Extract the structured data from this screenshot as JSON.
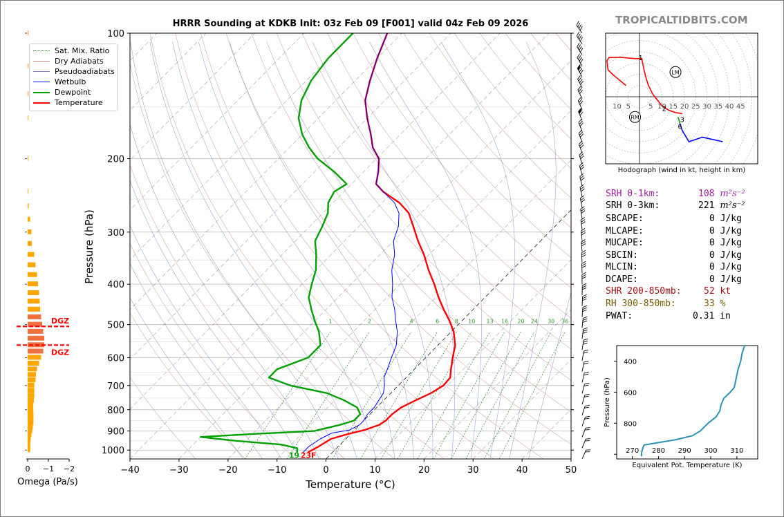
{
  "brand": "TROPICALTIDBITS.COM",
  "chart_data": [
    {
      "type": "line",
      "title": "HRRR Sounding at KDKB Init: 03z Feb 09 [F001] valid 04z Feb 09 2026",
      "xlabel": "Temperature (°C)",
      "ylabel": "Pressure (hPa)",
      "xlim": [
        -40,
        50
      ],
      "ylim": [
        1050,
        100
      ],
      "log_scale_y": true,
      "x_ticks": [
        "−40",
        "−30",
        "−20",
        "−10",
        "0",
        "10",
        "20",
        "30",
        "40",
        "50"
      ],
      "y_ticks": [
        "100",
        "200",
        "300",
        "400",
        "500",
        "600",
        "700",
        "800",
        "900",
        "1000"
      ],
      "skew": true,
      "legend": [
        "Sat. Mix. Ratio",
        "Dry Adiabats",
        "Pseudoadiabats",
        "Wetbulb",
        "Dewpoint",
        "Temperature"
      ],
      "legend_placement": "top-left",
      "mixing_ratio_labels": [
        "1",
        "2",
        "4",
        "6",
        "8",
        "10",
        "13",
        "16",
        "20",
        "24",
        "30",
        "36"
      ],
      "surface_label_dewpoint": "19",
      "surface_label_temperature": "23F",
      "series": [
        {
          "name": "Temperature",
          "color": "#ff0000",
          "points": [
            [
              -5,
              1013
            ],
            [
              -4,
              980
            ],
            [
              -3,
              940
            ],
            [
              -0.5,
              915
            ],
            [
              2,
              895
            ],
            [
              4,
              870
            ],
            [
              4.5,
              850
            ],
            [
              4.5,
              820
            ],
            [
              5,
              790
            ],
            [
              6.5,
              760
            ],
            [
              8.2,
              730
            ],
            [
              9.2,
              700
            ],
            [
              9,
              670
            ],
            [
              7.5,
              640
            ],
            [
              5.5,
              600
            ],
            [
              3.5,
              560
            ],
            [
              0.5,
              520
            ],
            [
              -2.5,
              490
            ],
            [
              -6,
              460
            ],
            [
              -9.5,
              430
            ],
            [
              -13,
              400
            ],
            [
              -17,
              370
            ],
            [
              -21,
              340
            ],
            [
              -25,
              315
            ],
            [
              -29,
              290
            ],
            [
              -32.5,
              270
            ],
            [
              -36.5,
              255
            ],
            [
              -42,
              240
            ],
            [
              -45,
              230
            ],
            [
              -47,
              215
            ],
            [
              -49.5,
              200
            ],
            [
              -53,
              188
            ],
            [
              -56,
              175
            ],
            [
              -60,
              160
            ],
            [
              -64,
              145
            ],
            [
              -67,
              130
            ],
            [
              -70,
              115
            ],
            [
              -73,
              100
            ]
          ]
        },
        {
          "name": "Wetbulb",
          "color": "#0000ff",
          "points": [
            [
              -6,
              1013
            ],
            [
              -6,
              980
            ],
            [
              -5.2,
              940
            ],
            [
              -4,
              910
            ],
            [
              -1,
              895
            ],
            [
              0,
              870
            ],
            [
              0,
              850
            ],
            [
              -0.5,
              820
            ],
            [
              -0.5,
              790
            ],
            [
              -1,
              760
            ],
            [
              -1.5,
              730
            ],
            [
              -2.8,
              700
            ],
            [
              -4.5,
              670
            ],
            [
              -5.5,
              640
            ],
            [
              -7,
              600
            ],
            [
              -8.5,
              560
            ],
            [
              -11,
              520
            ],
            [
              -13.5,
              490
            ],
            [
              -16,
              460
            ],
            [
              -19,
              430
            ],
            [
              -21.5,
              400
            ],
            [
              -24.5,
              370
            ],
            [
              -27,
              340
            ],
            [
              -30,
              315
            ],
            [
              -32,
              290
            ],
            [
              -34.5,
              270
            ],
            [
              -37.5,
              255
            ],
            [
              -42,
              240
            ],
            [
              -45,
              230
            ],
            [
              -47,
              215
            ],
            [
              -49.5,
              200
            ],
            [
              -53,
              188
            ],
            [
              -56,
              175
            ],
            [
              -60,
              160
            ],
            [
              -64,
              145
            ],
            [
              -67,
              130
            ],
            [
              -70,
              115
            ],
            [
              -73,
              100
            ]
          ]
        },
        {
          "name": "Dewpoint",
          "color": "#00a000",
          "points": [
            [
              -7.2,
              1013
            ],
            [
              -8,
              990
            ],
            [
              -12,
              970
            ],
            [
              -22,
              950
            ],
            [
              -30,
              930
            ],
            [
              -20,
              915
            ],
            [
              -8,
              900
            ],
            [
              -4,
              870
            ],
            [
              -2,
              850
            ],
            [
              -2,
              820
            ],
            [
              -4,
              790
            ],
            [
              -8,
              760
            ],
            [
              -13,
              730
            ],
            [
              -22,
              700
            ],
            [
              -28,
              670
            ],
            [
              -28,
              640
            ],
            [
              -24,
              600
            ],
            [
              -24,
              560
            ],
            [
              -27,
              520
            ],
            [
              -30,
              490
            ],
            [
              -33,
              460
            ],
            [
              -36,
              430
            ],
            [
              -38,
              400
            ],
            [
              -40,
              370
            ],
            [
              -43,
              340
            ],
            [
              -46,
              315
            ],
            [
              -47.5,
              290
            ],
            [
              -49,
              270
            ],
            [
              -51,
              255
            ],
            [
              -52,
              240
            ],
            [
              -51,
              230
            ],
            [
              -56,
              215
            ],
            [
              -62,
              200
            ],
            [
              -66,
              188
            ],
            [
              -70,
              175
            ],
            [
              -74,
              160
            ],
            [
              -77,
              145
            ],
            [
              -79,
              130
            ],
            [
              -80,
              115
            ],
            [
              -80,
              100
            ]
          ]
        }
      ]
    },
    {
      "type": "bar",
      "xlabel": "Omega (Pa/s)",
      "x_ticks": [
        "0",
        "−1",
        "−2"
      ],
      "xlim": [
        0,
        -2
      ],
      "dgz_label": "DGZ",
      "dgz_levels": [
        505,
        560
      ],
      "levels": [
        1000,
        980,
        960,
        940,
        920,
        900,
        880,
        860,
        840,
        820,
        800,
        780,
        760,
        740,
        720,
        700,
        680,
        660,
        640,
        620,
        600,
        580,
        560,
        540,
        520,
        500,
        480,
        460,
        440,
        420,
        400,
        380,
        360,
        340,
        320,
        300,
        280,
        260,
        240,
        200,
        160,
        140,
        120,
        100
      ],
      "values": [
        -0.12,
        -0.13,
        -0.13,
        -0.15,
        -0.18,
        -0.22,
        -0.25,
        -0.28,
        -0.28,
        -0.28,
        -0.27,
        -0.27,
        -0.3,
        -0.32,
        -0.32,
        -0.32,
        -0.38,
        -0.4,
        -0.45,
        -0.55,
        -0.65,
        -0.75,
        -0.8,
        -0.8,
        -0.75,
        -0.7,
        -0.65,
        -0.6,
        -0.58,
        -0.55,
        -0.5,
        -0.45,
        -0.38,
        -0.32,
        -0.2,
        -0.18,
        -0.12,
        -0.05,
        -0.02,
        -0.02,
        -0.02,
        -0.02,
        -0.02,
        -0.02
      ]
    },
    {
      "type": "line",
      "subtitle": "Hodograph (wind in kt, height in km)",
      "ring_labels": [
        "10",
        "5",
        "5",
        "10",
        "15",
        "20",
        "25",
        "30",
        "35",
        "40",
        "45"
      ],
      "markers": [
        {
          "label": "RM",
          "u": -2,
          "v": -9
        },
        {
          "label": "LM",
          "u": 16,
          "v": 11
        }
      ],
      "height_labels": [
        {
          "label": "1",
          "u": 0.5,
          "v": 17.5
        },
        {
          "label": "2",
          "u": 11,
          "v": -5
        },
        {
          "label": "3",
          "u": 19,
          "v": -10
        },
        {
          "label": "6",
          "u": 18,
          "v": -13
        }
      ],
      "segments": [
        {
          "color": "#ff0000",
          "points": [
            [
              -6,
              5
            ],
            [
              -12,
              10
            ],
            [
              -14,
              12
            ],
            [
              -14.5,
              16
            ],
            [
              -13.5,
              17.5
            ],
            [
              -8,
              17.5
            ],
            [
              -2,
              17
            ],
            [
              1,
              17
            ],
            [
              2,
              12
            ],
            [
              3,
              8
            ],
            [
              4,
              5
            ],
            [
              6,
              1
            ],
            [
              8,
              -1.5
            ],
            [
              10,
              -4
            ],
            [
              13,
              -6
            ],
            [
              16,
              -7
            ],
            [
              19,
              -7.5
            ]
          ]
        },
        {
          "color": "#00a000",
          "points": [
            [
              17,
              -9
            ],
            [
              17.5,
              -10
            ],
            [
              18,
              -12
            ]
          ]
        },
        {
          "color": "#0000ff",
          "points": [
            [
              18,
              -12
            ],
            [
              19,
              -15
            ],
            [
              22,
              -20
            ],
            [
              28,
              -18
            ],
            [
              37,
              -20
            ]
          ]
        }
      ]
    },
    {
      "type": "line",
      "xlabel": "Equivalent Pot. Temperature (K)",
      "ylabel": "Pressure (hPa)",
      "x_ticks": [
        "270",
        "280",
        "290",
        "300",
        "310"
      ],
      "xlim": [
        264,
        318
      ],
      "y_ticks": [
        "400",
        "600",
        "800"
      ],
      "ylim": [
        1030,
        300
      ],
      "series": [
        {
          "name": "",
          "color": "#2a93b5",
          "points": [
            [
              273.5,
              1013
            ],
            [
              273.5,
              990
            ],
            [
              274,
              960
            ],
            [
              274.5,
              940
            ],
            [
              280,
              925
            ],
            [
              287,
              905
            ],
            [
              293,
              880
            ],
            [
              296,
              850
            ],
            [
              299,
              800
            ],
            [
              302,
              760
            ],
            [
              303.5,
              720
            ],
            [
              304,
              680
            ],
            [
              305,
              640
            ],
            [
              307.5,
              600
            ],
            [
              309,
              570
            ],
            [
              309.5,
              530
            ],
            [
              310,
              490
            ],
            [
              310.5,
              450
            ],
            [
              311.5,
              400
            ],
            [
              312,
              350
            ],
            [
              313,
              300
            ]
          ]
        }
      ]
    }
  ],
  "indices": {
    "srh01_label": "SRH 0-1km:",
    "srh01_value": "108",
    "srh03_label": "SRH 0-3km:",
    "srh03_value": "221",
    "srh_units": "m²s⁻²",
    "rows": [
      {
        "label": "SBCAPE:",
        "value": "0 J/kg"
      },
      {
        "label": "MLCAPE:",
        "value": "0 J/kg"
      },
      {
        "label": "MUCAPE:",
        "value": "0 J/kg"
      },
      {
        "label": "SBCIN:",
        "value": "0 J/kg"
      },
      {
        "label": "MLCIN:",
        "value": "0 J/kg"
      },
      {
        "label": "DCAPE:",
        "value": "0 J/kg"
      }
    ],
    "shr_label": "SHR 200-850mb:",
    "shr_value": "52 kt",
    "rh_label": "RH 300-850mb:",
    "rh_value": "33 %",
    "pwat_label": "PWAT:",
    "pwat_value": "0.31 in"
  },
  "colors": {
    "temperature": "#ff0000",
    "dewpoint": "#00a000",
    "wetbulb": "#0000ff",
    "srh01": "#a020a0",
    "shr": "#a01010",
    "rh": "#7a5a00",
    "omega": "#ffa500",
    "brand": "#8a8a8a"
  }
}
